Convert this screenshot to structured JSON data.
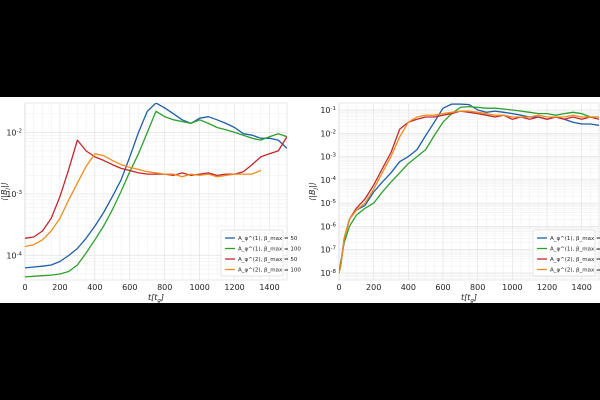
{
  "chart_data": [
    {
      "type": "line",
      "xlabel": "t[t_g]",
      "ylabel": "⟨|B_j|⟩",
      "xlim": [
        0,
        1500
      ],
      "ylim": [
        4e-05,
        0.03
      ],
      "yscale": "log",
      "xticks": [
        "0",
        "200",
        "400",
        "600",
        "800",
        "1000",
        "1200",
        "1400"
      ],
      "yticks": [
        "10^-4",
        "10^-3",
        "10^-2"
      ],
      "grid": true,
      "legend_position": "lower-right",
      "series": [
        {
          "name": "A_φ^(1), β_max = 50",
          "color": "#1f5fa6",
          "x": [
            0,
            50,
            100,
            150,
            200,
            250,
            300,
            350,
            400,
            450,
            500,
            550,
            600,
            650,
            700,
            750,
            800,
            850,
            900,
            950,
            1000,
            1050,
            1100,
            1150,
            1200,
            1250,
            1300,
            1350,
            1400,
            1450,
            1500
          ],
          "y": [
            6.3e-05,
            6.5e-05,
            6.7e-05,
            7e-05,
            8e-05,
            0.0001,
            0.00013,
            0.00019,
            0.0003,
            0.0005,
            0.0009,
            0.0017,
            0.004,
            0.01,
            0.022,
            0.03,
            0.025,
            0.02,
            0.016,
            0.014,
            0.017,
            0.018,
            0.016,
            0.014,
            0.012,
            0.0095,
            0.009,
            0.008,
            0.008,
            0.0075,
            0.0055
          ]
        },
        {
          "name": "A_φ^(1), β_max = 100",
          "color": "#2ca02c",
          "x": [
            0,
            50,
            100,
            150,
            200,
            250,
            300,
            350,
            400,
            450,
            500,
            550,
            600,
            650,
            700,
            750,
            800,
            850,
            900,
            950,
            1000,
            1050,
            1100,
            1150,
            1200,
            1250,
            1300,
            1350,
            1400,
            1450,
            1500
          ],
          "y": [
            4.5e-05,
            4.6e-05,
            4.7e-05,
            4.8e-05,
            5e-05,
            5.5e-05,
            7e-05,
            0.00011,
            0.00018,
            0.0003,
            0.00055,
            0.0011,
            0.0023,
            0.0045,
            0.01,
            0.022,
            0.018,
            0.016,
            0.015,
            0.014,
            0.016,
            0.014,
            0.012,
            0.011,
            0.01,
            0.009,
            0.008,
            0.0075,
            0.0085,
            0.0095,
            0.0085
          ]
        },
        {
          "name": "A_φ^(2), β_max = 50",
          "color": "#c1272d",
          "x": [
            0,
            50,
            100,
            150,
            200,
            250,
            300,
            350,
            400,
            450,
            500,
            550,
            600,
            650,
            700,
            750,
            800,
            850,
            900,
            950,
            1000,
            1050,
            1100,
            1150,
            1200,
            1250,
            1300,
            1350,
            1400,
            1450,
            1500
          ],
          "y": [
            0.00019,
            0.0002,
            0.00025,
            0.0004,
            0.0009,
            0.0025,
            0.0075,
            0.005,
            0.004,
            0.0035,
            0.003,
            0.0026,
            0.0024,
            0.0022,
            0.0021,
            0.0021,
            0.0021,
            0.002,
            0.0022,
            0.002,
            0.0021,
            0.0022,
            0.002,
            0.0021,
            0.0021,
            0.0023,
            0.003,
            0.004,
            0.0045,
            0.005,
            0.0085
          ]
        },
        {
          "name": "A_φ^(2), β_max = 100",
          "color": "#f08c1c",
          "x": [
            0,
            50,
            100,
            150,
            200,
            250,
            300,
            350,
            400,
            450,
            500,
            550,
            600,
            650,
            700,
            750,
            800,
            850,
            900,
            950,
            1000,
            1050,
            1100,
            1150,
            1200,
            1250,
            1300,
            1350
          ],
          "y": [
            0.00014,
            0.00015,
            0.00018,
            0.00025,
            0.0004,
            0.0008,
            0.0015,
            0.0028,
            0.0045,
            0.0042,
            0.0035,
            0.003,
            0.0027,
            0.0025,
            0.0023,
            0.0022,
            0.0021,
            0.0021,
            0.0019,
            0.0021,
            0.002,
            0.0021,
            0.0019,
            0.002,
            0.0021,
            0.0021,
            0.0021,
            0.0024
          ]
        }
      ]
    },
    {
      "type": "line",
      "xlabel": "t[t_g]",
      "ylabel": "⟨|B_j|⟩",
      "xlim": [
        0,
        1500
      ],
      "ylim": [
        5e-09,
        0.2
      ],
      "yscale": "log",
      "xticks": [
        "0",
        "200",
        "400",
        "600",
        "800",
        "1000",
        "1200",
        "1400"
      ],
      "yticks": [
        "10^-8",
        "10^-7",
        "10^-6",
        "10^-5",
        "10^-4",
        "10^-3",
        "10^-2",
        "10^-1"
      ],
      "grid": true,
      "legend_position": "lower-right",
      "series": [
        {
          "name": "A_φ^(1), β_max = 50",
          "color": "#1f5fa6",
          "x": [
            0,
            10,
            30,
            60,
            100,
            150,
            200,
            250,
            300,
            350,
            400,
            450,
            500,
            550,
            600,
            650,
            700,
            750,
            800,
            850,
            900,
            950,
            1000,
            1050,
            1100,
            1150,
            1200,
            1250,
            1300,
            1350,
            1400,
            1450,
            1500
          ],
          "y": [
            1e-08,
            2e-08,
            3e-07,
            2e-06,
            5e-06,
            8e-06,
            3e-05,
            8e-05,
            0.0002,
            0.0006,
            0.001,
            0.002,
            0.008,
            0.03,
            0.12,
            0.18,
            0.18,
            0.17,
            0.1,
            0.08,
            0.09,
            0.08,
            0.07,
            0.06,
            0.05,
            0.05,
            0.04,
            0.05,
            0.04,
            0.03,
            0.025,
            0.025,
            0.022
          ]
        },
        {
          "name": "A_φ^(1), β_max = 100",
          "color": "#2ca02c",
          "x": [
            0,
            10,
            30,
            60,
            100,
            150,
            200,
            250,
            300,
            350,
            400,
            450,
            500,
            550,
            600,
            650,
            700,
            750,
            800,
            850,
            900,
            950,
            1000,
            1050,
            1100,
            1150,
            1200,
            1250,
            1300,
            1350,
            1400,
            1450,
            1500
          ],
          "y": [
            1e-08,
            3e-08,
            2e-07,
            1e-06,
            3e-06,
            6e-06,
            1e-05,
            3e-05,
            8e-05,
            0.0002,
            0.0005,
            0.001,
            0.002,
            0.008,
            0.03,
            0.07,
            0.13,
            0.14,
            0.13,
            0.12,
            0.12,
            0.11,
            0.1,
            0.09,
            0.08,
            0.07,
            0.07,
            0.06,
            0.07,
            0.08,
            0.07,
            0.05,
            0.05
          ]
        },
        {
          "name": "A_φ^(2), β_max = 50",
          "color": "#c1272d",
          "x": [
            0,
            10,
            30,
            60,
            100,
            150,
            200,
            250,
            300,
            350,
            400,
            450,
            500,
            550,
            600,
            650,
            700,
            750,
            800,
            850,
            900,
            950,
            1000,
            1050,
            1100,
            1150,
            1200,
            1250,
            1300,
            1350,
            1400,
            1450,
            1500
          ],
          "y": [
            1e-08,
            2e-08,
            3e-07,
            2e-06,
            6e-06,
            1.5e-05,
            6e-05,
            0.0003,
            0.0015,
            0.015,
            0.03,
            0.04,
            0.05,
            0.05,
            0.06,
            0.07,
            0.09,
            0.08,
            0.07,
            0.06,
            0.05,
            0.06,
            0.04,
            0.05,
            0.04,
            0.05,
            0.04,
            0.05,
            0.04,
            0.05,
            0.04,
            0.05,
            0.04
          ]
        },
        {
          "name": "A_φ^(2), β_max = 100",
          "color": "#f08c1c",
          "x": [
            0,
            10,
            30,
            60,
            100,
            150,
            200,
            250,
            300,
            350,
            400,
            450,
            500,
            550,
            600,
            650,
            700,
            750,
            800,
            850,
            900,
            950,
            1000,
            1050,
            1100,
            1150,
            1200,
            1250,
            1300,
            1350,
            1400,
            1450,
            1500
          ],
          "y": [
            1e-08,
            2e-08,
            3e-07,
            2e-06,
            5e-06,
            1e-05,
            4e-05,
            0.0002,
            0.001,
            0.007,
            0.03,
            0.05,
            0.06,
            0.06,
            0.07,
            0.08,
            0.09,
            0.09,
            0.08,
            0.07,
            0.06,
            0.06,
            0.05,
            0.05,
            0.05,
            0.06,
            0.05,
            0.05,
            0.05,
            0.06,
            0.05,
            0.05,
            0.05
          ]
        }
      ]
    }
  ]
}
